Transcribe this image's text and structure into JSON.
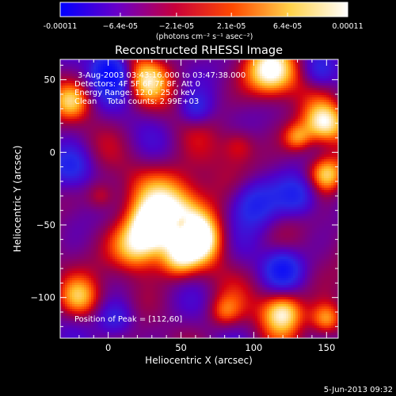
{
  "chart_data": {
    "type": "heatmap",
    "title": "Reconstructed RHESSI Image",
    "xlabel": "Heliocentric X (arcsec)",
    "ylabel": "Heliocentric Y (arcsec)",
    "xlim": [
      -33,
      158
    ],
    "ylim": [
      -128,
      64
    ],
    "x_ticks": [
      0,
      50,
      100,
      150
    ],
    "y_ticks": [
      50,
      0,
      -50,
      -100
    ],
    "colorbar": {
      "ticks": [
        -0.00011,
        -6.4e-05,
        -2.1e-05,
        2.1e-05,
        6.4e-05,
        0.00011
      ],
      "tick_labels": [
        "-0.00011",
        "−6.4e-05",
        "−2.1e-05",
        "2.1e-05",
        "6.4e-05",
        "0.00011"
      ],
      "range": [
        -0.00011,
        0.00011
      ],
      "unit_label": "(photons cm⁻² s⁻¹ asec⁻²)",
      "colors": [
        "#0000ff",
        "#6a00c8",
        "#c8003a",
        "#ff4a00",
        "#ffd24a",
        "#ffffff"
      ]
    },
    "annotations": {
      "time_range": "3-Aug-2003 03:43:16.000 to 03:47:38.000",
      "detectors": "Detectors: 4F 5F 6F 7F 8F, Att 0",
      "energy": "Energy Range: 12.0 - 25.0 keV",
      "method_counts": "Clean    Total counts: 2.99E+03",
      "peak": "Position of Peak = [112,60]"
    },
    "sources": [
      {
        "x": 48,
        "y": -40,
        "r": 20,
        "v": 0.9
      },
      {
        "x": 30,
        "y": -50,
        "r": 10,
        "v": 0.7
      },
      {
        "x": 62,
        "y": -60,
        "r": 11,
        "v": 0.75
      },
      {
        "x": 20,
        "y": -65,
        "r": 12,
        "v": 0.85
      },
      {
        "x": 25,
        "y": 50,
        "r": 11,
        "v": 0.7
      },
      {
        "x": -25,
        "y": 35,
        "r": 9,
        "v": 0.6
      },
      {
        "x": 112,
        "y": 55,
        "r": 12,
        "v": 1.0
      },
      {
        "x": 148,
        "y": 20,
        "r": 10,
        "v": 0.9
      },
      {
        "x": 150,
        "y": -15,
        "r": 9,
        "v": 0.8
      },
      {
        "x": 130,
        "y": 10,
        "r": 7,
        "v": 0.55
      },
      {
        "x": 120,
        "y": -110,
        "r": 10,
        "v": 0.9
      },
      {
        "x": 150,
        "y": -115,
        "r": 8,
        "v": 0.7
      },
      {
        "x": -20,
        "y": -100,
        "r": 10,
        "v": 0.6
      },
      {
        "x": 80,
        "y": -110,
        "r": 8,
        "v": 0.45
      },
      {
        "x": 48,
        "y": -75,
        "r": 9,
        "v": 0.5
      },
      {
        "x": -5,
        "y": -30,
        "r": 7,
        "v": 0.35
      },
      {
        "x": 90,
        "y": 5,
        "r": 8,
        "v": 0.35
      },
      {
        "x": 5,
        "y": 50,
        "r": 10,
        "v": -0.6
      },
      {
        "x": 100,
        "y": -35,
        "r": 12,
        "v": -0.7
      },
      {
        "x": 130,
        "y": -30,
        "r": 10,
        "v": -0.6
      },
      {
        "x": 120,
        "y": -80,
        "r": 9,
        "v": -0.7
      },
      {
        "x": -25,
        "y": -10,
        "r": 10,
        "v": -0.55
      },
      {
        "x": 0,
        "y": 60,
        "r": 8,
        "v": -0.55
      },
      {
        "x": 5,
        "y": -115,
        "r": 9,
        "v": -0.5
      },
      {
        "x": 60,
        "y": 30,
        "r": 8,
        "v": -0.45
      },
      {
        "x": 145,
        "y": 55,
        "r": 8,
        "v": -0.45
      },
      {
        "x": 50,
        "y": -50,
        "r": 5,
        "v": -0.45
      }
    ]
  },
  "footer": {
    "date": "5-Jun-2013 09:32"
  }
}
